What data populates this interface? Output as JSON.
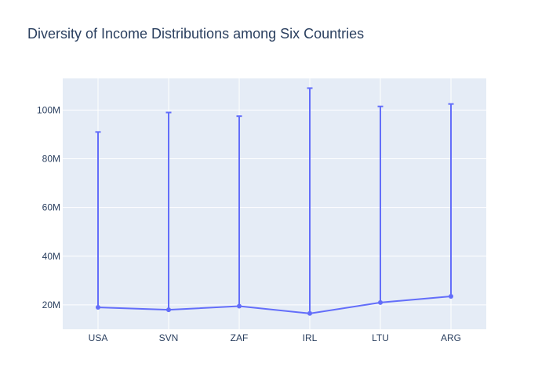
{
  "chart_data": {
    "type": "line",
    "title": "Diversity of Income Distributions among Six Countries",
    "xlabel": "",
    "ylabel": "",
    "categories": [
      "USA",
      "SVN",
      "ZAF",
      "IRL",
      "LTU",
      "ARG"
    ],
    "series": [
      {
        "values": [
          19000000,
          18000000,
          19500000,
          16500000,
          21000000,
          23500000
        ],
        "error_plus": [
          72000000,
          81000000,
          78000000,
          92500000,
          80500000,
          79000000
        ],
        "error_minus": [
          0,
          0,
          0,
          0,
          0,
          0
        ]
      }
    ],
    "ylim": [
      10000000,
      113000000
    ],
    "yticks": [
      20000000,
      40000000,
      60000000,
      80000000,
      100000000
    ],
    "ytick_labels": [
      "20M",
      "40M",
      "60M",
      "80M",
      "100M"
    ],
    "grid": true,
    "legend": "none",
    "colors": {
      "line": "#636efa",
      "plot_background": "#e5ecf6",
      "grid": "#ffffff",
      "text": "#2a3f5f"
    }
  }
}
